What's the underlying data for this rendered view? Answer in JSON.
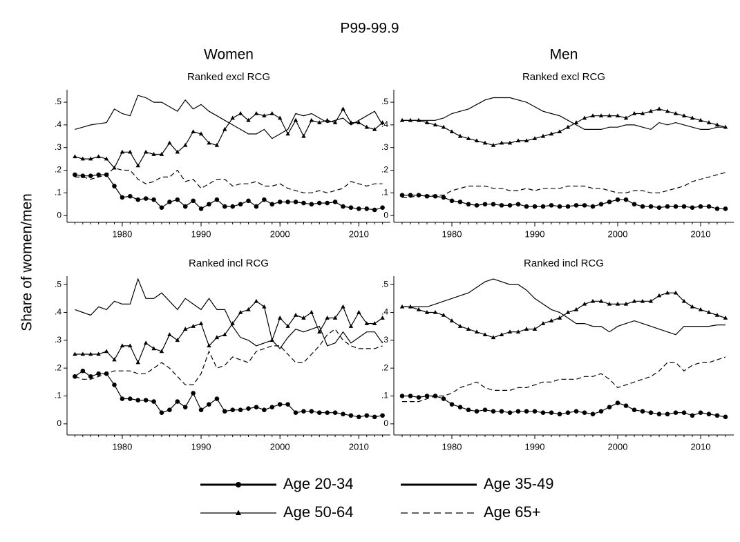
{
  "title": "P99-99.9",
  "y_label": "Share of women/men",
  "column_titles": [
    "Women",
    "Men"
  ],
  "chart_data": [
    {
      "type": "line",
      "subtitle": "Ranked excl RCG",
      "x": [
        1974,
        1975,
        1976,
        1977,
        1978,
        1979,
        1980,
        1981,
        1982,
        1983,
        1984,
        1985,
        1986,
        1987,
        1988,
        1989,
        1990,
        1991,
        1992,
        1993,
        1994,
        1995,
        1996,
        1997,
        1998,
        1999,
        2000,
        2001,
        2002,
        2003,
        2004,
        2005,
        2006,
        2007,
        2008,
        2009,
        2010,
        2011,
        2012,
        2013
      ],
      "xlim": [
        1973,
        2014
      ],
      "xticks": [
        1980,
        1990,
        2000,
        2010
      ],
      "ylim": [
        -0.03,
        0.555
      ],
      "yticks": [
        {
          "value": 0,
          "label": "0"
        },
        {
          "value": 0.1,
          "label": ".1"
        },
        {
          "value": 0.2,
          "label": ".2"
        },
        {
          "value": 0.3,
          "label": ".3"
        },
        {
          "value": 0.4,
          "label": ".4"
        },
        {
          "value": 0.5,
          "label": ".5"
        }
      ],
      "series": [
        {
          "name": "Age 20-34",
          "color": "#000000",
          "marker": "circle",
          "dash": "solid",
          "values": [
            0.18,
            0.175,
            0.175,
            0.18,
            0.18,
            0.13,
            0.08,
            0.085,
            0.07,
            0.075,
            0.07,
            0.035,
            0.06,
            0.07,
            0.04,
            0.065,
            0.03,
            0.05,
            0.07,
            0.04,
            0.04,
            0.05,
            0.065,
            0.04,
            0.07,
            0.05,
            0.06,
            0.06,
            0.06,
            0.055,
            0.05,
            0.055,
            0.055,
            0.06,
            0.04,
            0.035,
            0.03,
            0.03,
            0.025,
            0.035
          ]
        },
        {
          "name": "Age 35-49",
          "color": "#000000",
          "marker": "none",
          "dash": "solid",
          "values": [
            0.38,
            0.39,
            0.4,
            0.405,
            0.41,
            0.47,
            0.45,
            0.44,
            0.53,
            0.52,
            0.5,
            0.5,
            0.48,
            0.46,
            0.51,
            0.47,
            0.49,
            0.46,
            0.44,
            0.42,
            0.4,
            0.38,
            0.36,
            0.36,
            0.38,
            0.34,
            0.36,
            0.38,
            0.45,
            0.44,
            0.45,
            0.43,
            0.41,
            0.42,
            0.43,
            0.4,
            0.42,
            0.44,
            0.46,
            0.4
          ]
        },
        {
          "name": "Age 50-64",
          "color": "#000000",
          "marker": "triangle",
          "dash": "solid",
          "values": [
            0.26,
            0.25,
            0.25,
            0.26,
            0.25,
            0.21,
            0.28,
            0.28,
            0.22,
            0.28,
            0.27,
            0.27,
            0.32,
            0.28,
            0.31,
            0.37,
            0.36,
            0.32,
            0.31,
            0.38,
            0.43,
            0.45,
            0.42,
            0.45,
            0.44,
            0.45,
            0.43,
            0.36,
            0.42,
            0.35,
            0.42,
            0.41,
            0.42,
            0.41,
            0.47,
            0.41,
            0.41,
            0.39,
            0.38,
            0.41
          ]
        },
        {
          "name": "Age 65+",
          "color": "#000000",
          "marker": "none",
          "dash": "dashed",
          "values": [
            0.17,
            0.17,
            0.16,
            0.17,
            0.18,
            0.21,
            0.2,
            0.2,
            0.16,
            0.14,
            0.15,
            0.17,
            0.17,
            0.2,
            0.15,
            0.16,
            0.12,
            0.14,
            0.16,
            0.16,
            0.13,
            0.14,
            0.14,
            0.15,
            0.13,
            0.13,
            0.14,
            0.12,
            0.11,
            0.1,
            0.1,
            0.11,
            0.1,
            0.11,
            0.12,
            0.15,
            0.14,
            0.13,
            0.14,
            0.14
          ]
        }
      ]
    },
    {
      "type": "line",
      "subtitle": "Ranked excl RCG",
      "x": [
        1974,
        1975,
        1976,
        1977,
        1978,
        1979,
        1980,
        1981,
        1982,
        1983,
        1984,
        1985,
        1986,
        1987,
        1988,
        1989,
        1990,
        1991,
        1992,
        1993,
        1994,
        1995,
        1996,
        1997,
        1998,
        1999,
        2000,
        2001,
        2002,
        2003,
        2004,
        2005,
        2006,
        2007,
        2008,
        2009,
        2010,
        2011,
        2012,
        2013
      ],
      "xlim": [
        1973,
        2014
      ],
      "xticks": [
        1980,
        1990,
        2000,
        2010
      ],
      "ylim": [
        -0.03,
        0.555
      ],
      "yticks": [
        {
          "value": 0,
          "label": "0"
        },
        {
          "value": 0.1,
          "label": ".1"
        },
        {
          "value": 0.2,
          "label": ".2"
        },
        {
          "value": 0.3,
          "label": ".3"
        },
        {
          "value": 0.4,
          "label": ".4"
        },
        {
          "value": 0.5,
          "label": ".5"
        }
      ],
      "series": [
        {
          "name": "Age 20-34",
          "color": "#000000",
          "marker": "circle",
          "dash": "solid",
          "values": [
            0.09,
            0.09,
            0.09,
            0.085,
            0.085,
            0.08,
            0.065,
            0.06,
            0.05,
            0.045,
            0.05,
            0.05,
            0.045,
            0.045,
            0.05,
            0.04,
            0.04,
            0.04,
            0.045,
            0.04,
            0.04,
            0.045,
            0.045,
            0.04,
            0.05,
            0.06,
            0.07,
            0.07,
            0.05,
            0.04,
            0.04,
            0.035,
            0.04,
            0.04,
            0.04,
            0.035,
            0.04,
            0.04,
            0.03,
            0.03
          ]
        },
        {
          "name": "Age 35-49",
          "color": "#000000",
          "marker": "none",
          "dash": "solid",
          "values": [
            0.42,
            0.42,
            0.42,
            0.42,
            0.42,
            0.43,
            0.45,
            0.46,
            0.47,
            0.49,
            0.51,
            0.52,
            0.52,
            0.52,
            0.51,
            0.5,
            0.48,
            0.46,
            0.45,
            0.44,
            0.42,
            0.4,
            0.38,
            0.38,
            0.38,
            0.39,
            0.39,
            0.4,
            0.4,
            0.39,
            0.38,
            0.41,
            0.4,
            0.41,
            0.4,
            0.39,
            0.38,
            0.38,
            0.39,
            0.39
          ]
        },
        {
          "name": "Age 50-64",
          "color": "#000000",
          "marker": "triangle",
          "dash": "solid",
          "values": [
            0.42,
            0.42,
            0.42,
            0.41,
            0.4,
            0.39,
            0.37,
            0.35,
            0.34,
            0.33,
            0.32,
            0.31,
            0.32,
            0.32,
            0.33,
            0.33,
            0.34,
            0.35,
            0.36,
            0.37,
            0.39,
            0.41,
            0.43,
            0.44,
            0.44,
            0.44,
            0.44,
            0.43,
            0.45,
            0.45,
            0.46,
            0.47,
            0.46,
            0.45,
            0.44,
            0.43,
            0.42,
            0.41,
            0.4,
            0.39
          ]
        },
        {
          "name": "Age 65+",
          "color": "#000000",
          "marker": "none",
          "dash": "dashed",
          "values": [
            0.08,
            0.08,
            0.09,
            0.09,
            0.09,
            0.09,
            0.11,
            0.12,
            0.13,
            0.13,
            0.13,
            0.12,
            0.12,
            0.11,
            0.11,
            0.12,
            0.11,
            0.12,
            0.12,
            0.12,
            0.13,
            0.13,
            0.13,
            0.12,
            0.12,
            0.11,
            0.1,
            0.1,
            0.11,
            0.11,
            0.1,
            0.1,
            0.11,
            0.12,
            0.13,
            0.15,
            0.16,
            0.17,
            0.18,
            0.19
          ]
        }
      ]
    },
    {
      "type": "line",
      "subtitle": "Ranked incl RCG",
      "x": [
        1974,
        1975,
        1976,
        1977,
        1978,
        1979,
        1980,
        1981,
        1982,
        1983,
        1984,
        1985,
        1986,
        1987,
        1988,
        1989,
        1990,
        1991,
        1992,
        1993,
        1994,
        1995,
        1996,
        1997,
        1998,
        1999,
        2000,
        2001,
        2002,
        2003,
        2004,
        2005,
        2006,
        2007,
        2008,
        2009,
        2010,
        2011,
        2012,
        2013
      ],
      "xlim": [
        1973,
        2014
      ],
      "xticks": [
        1980,
        1990,
        2000,
        2010
      ],
      "ylim": [
        -0.04,
        0.53
      ],
      "yticks": [
        {
          "value": 0,
          "label": "0"
        },
        {
          "value": 0.1,
          "label": ".1"
        },
        {
          "value": 0.2,
          "label": ".2"
        },
        {
          "value": 0.3,
          "label": ".3"
        },
        {
          "value": 0.4,
          "label": ".4"
        },
        {
          "value": 0.5,
          "label": ".5"
        }
      ],
      "series": [
        {
          "name": "Age 20-34",
          "color": "#000000",
          "marker": "circle",
          "dash": "solid",
          "values": [
            0.17,
            0.19,
            0.17,
            0.18,
            0.18,
            0.14,
            0.09,
            0.09,
            0.085,
            0.085,
            0.08,
            0.04,
            0.05,
            0.08,
            0.06,
            0.11,
            0.05,
            0.07,
            0.09,
            0.045,
            0.05,
            0.05,
            0.055,
            0.06,
            0.05,
            0.06,
            0.07,
            0.07,
            0.04,
            0.045,
            0.045,
            0.04,
            0.04,
            0.04,
            0.035,
            0.03,
            0.025,
            0.03,
            0.025,
            0.03
          ]
        },
        {
          "name": "Age 35-49",
          "color": "#000000",
          "marker": "none",
          "dash": "solid",
          "values": [
            0.41,
            0.4,
            0.39,
            0.42,
            0.41,
            0.44,
            0.43,
            0.43,
            0.52,
            0.45,
            0.45,
            0.47,
            0.44,
            0.41,
            0.45,
            0.43,
            0.41,
            0.45,
            0.41,
            0.41,
            0.35,
            0.31,
            0.3,
            0.28,
            0.29,
            0.3,
            0.27,
            0.31,
            0.34,
            0.33,
            0.34,
            0.35,
            0.28,
            0.29,
            0.33,
            0.29,
            0.31,
            0.33,
            0.33,
            0.29
          ]
        },
        {
          "name": "Age 50-64",
          "color": "#000000",
          "marker": "triangle",
          "dash": "solid",
          "values": [
            0.25,
            0.25,
            0.25,
            0.25,
            0.26,
            0.23,
            0.28,
            0.28,
            0.22,
            0.29,
            0.27,
            0.26,
            0.32,
            0.3,
            0.34,
            0.35,
            0.36,
            0.28,
            0.31,
            0.32,
            0.36,
            0.4,
            0.41,
            0.44,
            0.42,
            0.3,
            0.38,
            0.35,
            0.39,
            0.38,
            0.4,
            0.33,
            0.38,
            0.38,
            0.42,
            0.35,
            0.4,
            0.36,
            0.36,
            0.38
          ]
        },
        {
          "name": "Age 65+",
          "color": "#000000",
          "marker": "none",
          "dash": "dashed",
          "values": [
            0.17,
            0.16,
            0.16,
            0.17,
            0.18,
            0.19,
            0.19,
            0.19,
            0.18,
            0.18,
            0.2,
            0.22,
            0.2,
            0.17,
            0.14,
            0.14,
            0.18,
            0.26,
            0.2,
            0.21,
            0.24,
            0.23,
            0.22,
            0.26,
            0.27,
            0.28,
            0.28,
            0.25,
            0.22,
            0.22,
            0.25,
            0.28,
            0.32,
            0.34,
            0.3,
            0.28,
            0.27,
            0.27,
            0.27,
            0.28
          ]
        }
      ]
    },
    {
      "type": "line",
      "subtitle": "Ranked incl RCG",
      "x": [
        1974,
        1975,
        1976,
        1977,
        1978,
        1979,
        1980,
        1981,
        1982,
        1983,
        1984,
        1985,
        1986,
        1987,
        1988,
        1989,
        1990,
        1991,
        1992,
        1993,
        1994,
        1995,
        1996,
        1997,
        1998,
        1999,
        2000,
        2001,
        2002,
        2003,
        2004,
        2005,
        2006,
        2007,
        2008,
        2009,
        2010,
        2011,
        2012,
        2013
      ],
      "xlim": [
        1973,
        2014
      ],
      "xticks": [
        1980,
        1990,
        2000,
        2010
      ],
      "ylim": [
        -0.04,
        0.53
      ],
      "yticks": [
        {
          "value": 0,
          "label": "0"
        },
        {
          "value": 0.1,
          "label": ".1"
        },
        {
          "value": 0.2,
          "label": ".2"
        },
        {
          "value": 0.3,
          "label": ".3"
        },
        {
          "value": 0.4,
          "label": ".4"
        },
        {
          "value": 0.5,
          "label": ".5"
        }
      ],
      "series": [
        {
          "name": "Age 20-34",
          "color": "#000000",
          "marker": "circle",
          "dash": "solid",
          "values": [
            0.1,
            0.1,
            0.095,
            0.1,
            0.1,
            0.09,
            0.07,
            0.06,
            0.05,
            0.045,
            0.05,
            0.045,
            0.045,
            0.04,
            0.045,
            0.045,
            0.045,
            0.04,
            0.04,
            0.035,
            0.04,
            0.045,
            0.04,
            0.035,
            0.045,
            0.06,
            0.075,
            0.065,
            0.05,
            0.045,
            0.04,
            0.035,
            0.035,
            0.04,
            0.04,
            0.03,
            0.04,
            0.035,
            0.03,
            0.025
          ]
        },
        {
          "name": "Age 35-49",
          "color": "#000000",
          "marker": "none",
          "dash": "solid",
          "values": [
            0.42,
            0.42,
            0.42,
            0.42,
            0.43,
            0.44,
            0.45,
            0.46,
            0.47,
            0.49,
            0.51,
            0.52,
            0.51,
            0.5,
            0.5,
            0.48,
            0.45,
            0.43,
            0.41,
            0.4,
            0.38,
            0.36,
            0.36,
            0.35,
            0.35,
            0.33,
            0.35,
            0.36,
            0.37,
            0.36,
            0.35,
            0.34,
            0.33,
            0.32,
            0.35,
            0.35,
            0.35,
            0.35,
            0.355,
            0.355
          ]
        },
        {
          "name": "Age 50-64",
          "color": "#000000",
          "marker": "triangle",
          "dash": "solid",
          "values": [
            0.42,
            0.42,
            0.41,
            0.4,
            0.4,
            0.39,
            0.37,
            0.35,
            0.34,
            0.33,
            0.32,
            0.31,
            0.32,
            0.33,
            0.33,
            0.34,
            0.34,
            0.36,
            0.37,
            0.38,
            0.4,
            0.41,
            0.43,
            0.44,
            0.44,
            0.43,
            0.43,
            0.43,
            0.44,
            0.44,
            0.44,
            0.46,
            0.47,
            0.47,
            0.44,
            0.42,
            0.41,
            0.4,
            0.39,
            0.38
          ]
        },
        {
          "name": "Age 65+",
          "color": "#000000",
          "marker": "none",
          "dash": "dashed",
          "values": [
            0.08,
            0.08,
            0.08,
            0.09,
            0.1,
            0.1,
            0.11,
            0.13,
            0.14,
            0.15,
            0.13,
            0.12,
            0.12,
            0.12,
            0.13,
            0.13,
            0.14,
            0.15,
            0.15,
            0.16,
            0.16,
            0.16,
            0.17,
            0.17,
            0.18,
            0.16,
            0.13,
            0.14,
            0.15,
            0.16,
            0.17,
            0.19,
            0.22,
            0.22,
            0.19,
            0.21,
            0.22,
            0.22,
            0.23,
            0.24
          ]
        }
      ]
    }
  ]
}
